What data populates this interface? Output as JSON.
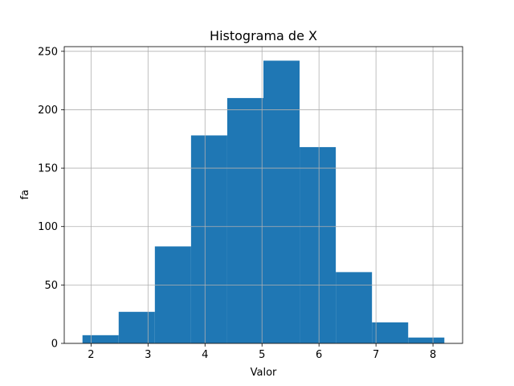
{
  "chart_data": {
    "type": "bar",
    "title": "Histograma de X",
    "xlabel": "Valor",
    "ylabel": "fa",
    "xlim": [
      1.53,
      8.52
    ],
    "ylim": [
      0,
      254
    ],
    "grid": true,
    "color": "#1f77b4",
    "xticks": [
      2,
      3,
      4,
      5,
      6,
      7,
      8
    ],
    "yticks": [
      0,
      50,
      100,
      150,
      200,
      250
    ],
    "bins": [
      {
        "start": 1.85,
        "end": 2.485,
        "count": 7
      },
      {
        "start": 2.485,
        "end": 3.12,
        "count": 27
      },
      {
        "start": 3.12,
        "end": 3.755,
        "count": 83
      },
      {
        "start": 3.755,
        "end": 4.39,
        "count": 178
      },
      {
        "start": 4.39,
        "end": 5.025,
        "count": 210
      },
      {
        "start": 5.025,
        "end": 5.66,
        "count": 242
      },
      {
        "start": 5.66,
        "end": 6.295,
        "count": 168
      },
      {
        "start": 6.295,
        "end": 6.93,
        "count": 61
      },
      {
        "start": 6.93,
        "end": 7.565,
        "count": 18
      },
      {
        "start": 7.565,
        "end": 8.2,
        "count": 5
      }
    ]
  }
}
